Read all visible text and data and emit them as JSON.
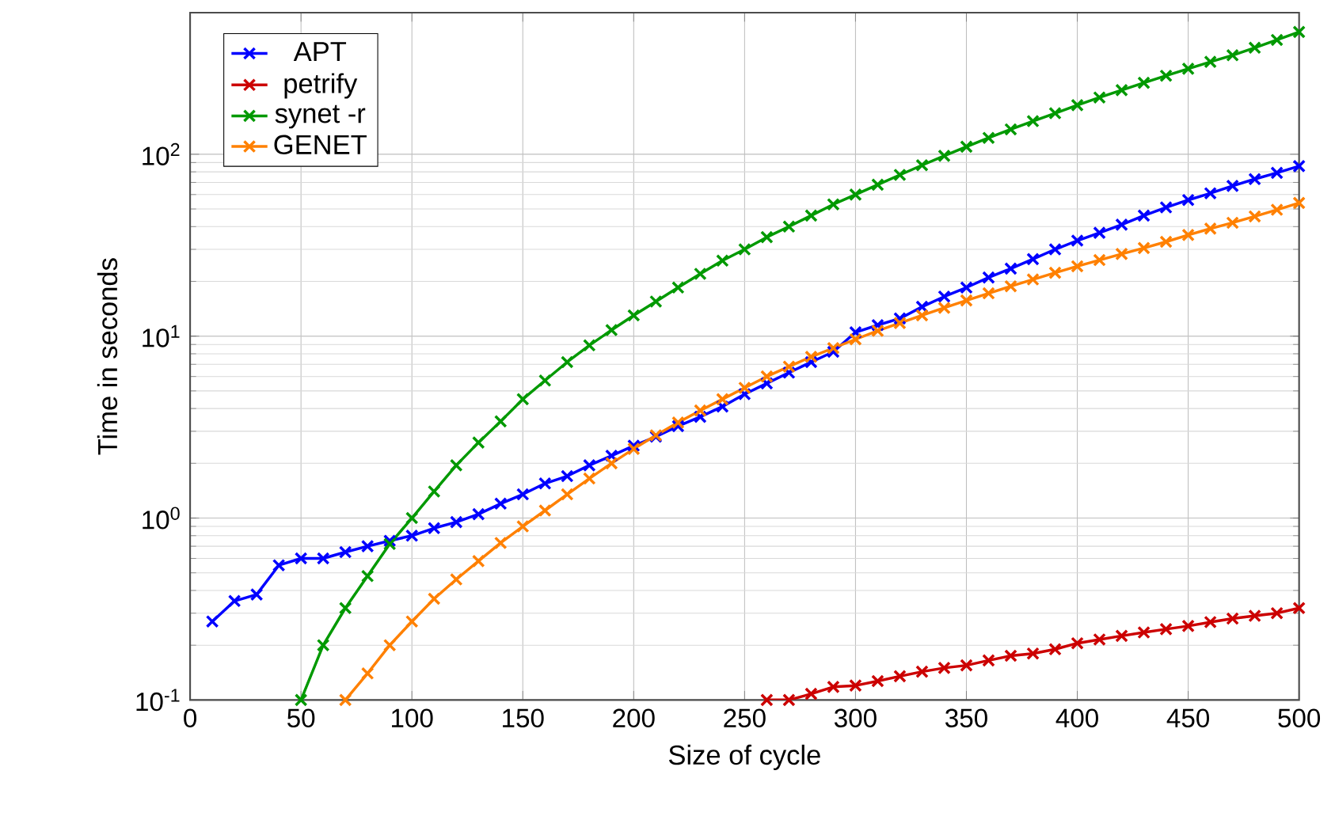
{
  "chart_data": {
    "type": "line",
    "xlabel": "Size of cycle",
    "ylabel": "Time in seconds",
    "log": "y",
    "grid": true,
    "legend": "top left",
    "marker": "cross",
    "line_style": "solid",
    "xlim": [
      0,
      500
    ],
    "xticks": [
      0,
      50,
      100,
      150,
      200,
      250,
      300,
      350,
      400,
      450,
      500
    ],
    "ylim": [
      0.1,
      600
    ],
    "yticks": [
      {
        "value": 0.1,
        "label": "10$^{-1}$"
      },
      {
        "value": 1,
        "label": "10$^{0}$"
      },
      {
        "value": 10,
        "label": "10$^{1}$"
      },
      {
        "value": 100,
        "label": "10$^{2}$"
      }
    ],
    "series": [
      {
        "name": "APT",
        "color": "#0000ff",
        "x": [
          10,
          20,
          30,
          40,
          50,
          60,
          70,
          80,
          90,
          100,
          110,
          120,
          130,
          140,
          150,
          160,
          170,
          180,
          190,
          200,
          210,
          220,
          230,
          240,
          250,
          260,
          270,
          280,
          290,
          300,
          310,
          320,
          330,
          340,
          350,
          360,
          370,
          380,
          390,
          400,
          410,
          420,
          430,
          440,
          450,
          460,
          470,
          480,
          490,
          500
        ],
        "values": [
          0.27,
          0.35,
          0.38,
          0.55,
          0.6,
          0.6,
          0.65,
          0.7,
          0.75,
          0.8,
          0.88,
          0.95,
          1.05,
          1.2,
          1.35,
          1.55,
          1.7,
          1.95,
          2.2,
          2.5,
          2.8,
          3.2,
          3.6,
          4.1,
          4.8,
          5.5,
          6.3,
          7.2,
          8.2,
          10.5,
          11.5,
          12.5,
          14.5,
          16.5,
          18.5,
          21,
          23.5,
          26.5,
          30,
          33.5,
          37,
          41,
          46,
          51,
          56,
          61,
          67,
          73,
          79,
          86
        ]
      },
      {
        "name": "petrify",
        "color": "#cc0000",
        "x": [
          260,
          270,
          280,
          290,
          300,
          310,
          320,
          330,
          340,
          350,
          360,
          370,
          380,
          390,
          400,
          410,
          420,
          430,
          440,
          450,
          460,
          470,
          480,
          490,
          500
        ],
        "values": [
          0.1,
          0.1,
          0.108,
          0.118,
          0.12,
          0.127,
          0.135,
          0.143,
          0.15,
          0.155,
          0.165,
          0.175,
          0.18,
          0.19,
          0.205,
          0.215,
          0.225,
          0.235,
          0.245,
          0.255,
          0.268,
          0.28,
          0.29,
          0.3,
          0.32
        ]
      },
      {
        "name": "synet -r",
        "color": "#009900",
        "x": [
          50,
          60,
          70,
          80,
          90,
          100,
          110,
          120,
          130,
          140,
          150,
          160,
          170,
          180,
          190,
          200,
          210,
          220,
          230,
          240,
          250,
          260,
          270,
          280,
          290,
          300,
          310,
          320,
          330,
          340,
          350,
          360,
          370,
          380,
          390,
          400,
          410,
          420,
          430,
          440,
          450,
          460,
          470,
          480,
          490,
          500
        ],
        "values": [
          0.1,
          0.2,
          0.32,
          0.48,
          0.72,
          1.0,
          1.4,
          1.95,
          2.6,
          3.4,
          4.5,
          5.7,
          7.2,
          8.9,
          10.8,
          13,
          15.5,
          18.5,
          22,
          26,
          30,
          35,
          40,
          46,
          53,
          60,
          68,
          77,
          87,
          98,
          110,
          123,
          137,
          152,
          168,
          186,
          205,
          225,
          247,
          270,
          295,
          322,
          350,
          385,
          425,
          470
        ]
      },
      {
        "name": "GENET",
        "color": "#ff8000",
        "x": [
          70,
          80,
          90,
          100,
          110,
          120,
          130,
          140,
          150,
          160,
          170,
          180,
          190,
          200,
          210,
          220,
          230,
          240,
          250,
          260,
          270,
          280,
          290,
          300,
          310,
          320,
          330,
          340,
          350,
          360,
          370,
          380,
          390,
          400,
          410,
          420,
          430,
          440,
          450,
          460,
          470,
          480,
          490,
          500
        ],
        "values": [
          0.1,
          0.14,
          0.2,
          0.27,
          0.36,
          0.46,
          0.58,
          0.73,
          0.9,
          1.1,
          1.35,
          1.65,
          2.0,
          2.4,
          2.85,
          3.35,
          3.9,
          4.5,
          5.2,
          6.0,
          6.8,
          7.7,
          8.6,
          9.6,
          10.7,
          11.8,
          13,
          14.3,
          15.7,
          17.2,
          18.8,
          20.5,
          22.3,
          24.2,
          26.2,
          28.3,
          30.5,
          33,
          36,
          39,
          42,
          45.5,
          49.5,
          54
        ]
      }
    ]
  }
}
